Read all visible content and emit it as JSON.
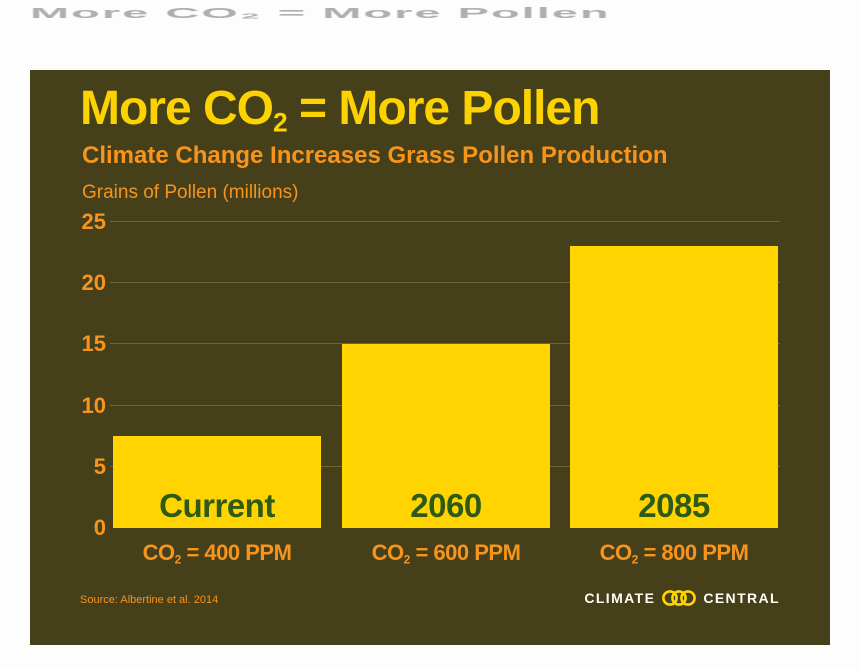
{
  "artifact": {
    "text": "More CO₂ = More Pollen"
  },
  "header": {
    "title_pre": "More CO",
    "title_sub": "2",
    "title_post": " = More Pollen",
    "subtitle": "Climate Change Increases Grass Pollen Production",
    "axis_label": "Grains of Pollen (millions)"
  },
  "chart_data": {
    "type": "bar",
    "title": "More CO2 = More Pollen",
    "subtitle": "Climate Change Increases Grass Pollen Production",
    "ylabel": "Grains of Pollen (millions)",
    "categories": [
      "Current",
      "2060",
      "2085"
    ],
    "values": [
      7.5,
      15,
      23
    ],
    "x_sublabels": [
      "CO2 = 400 PPM",
      "CO2 = 600 PPM",
      "CO2 = 800 PPM"
    ],
    "x_sublabel_parts": [
      {
        "pre": "CO",
        "sub": "2",
        "post": " = 400 PPM"
      },
      {
        "pre": "CO",
        "sub": "2",
        "post": " = 600 PPM"
      },
      {
        "pre": "CO",
        "sub": "2",
        "post": " = 800 PPM"
      }
    ],
    "yticks": [
      "0",
      "5",
      "10",
      "15",
      "20",
      "25"
    ],
    "ylim": [
      0,
      25
    ],
    "grid": true,
    "legend": false,
    "colors": {
      "background": "#454019",
      "bar": "#ffd400",
      "bar_label": "#2d5a14",
      "accent_orange": "#f7941e",
      "title_yellow": "#fcd200",
      "gridline": "#6e6730",
      "logo_text": "#fffef5"
    }
  },
  "footer": {
    "source": "Source: Albertine et al. 2014",
    "logo": {
      "left": "CLIMATE",
      "right": "CENTRAL",
      "icon": "three-interlocking-rings"
    }
  }
}
